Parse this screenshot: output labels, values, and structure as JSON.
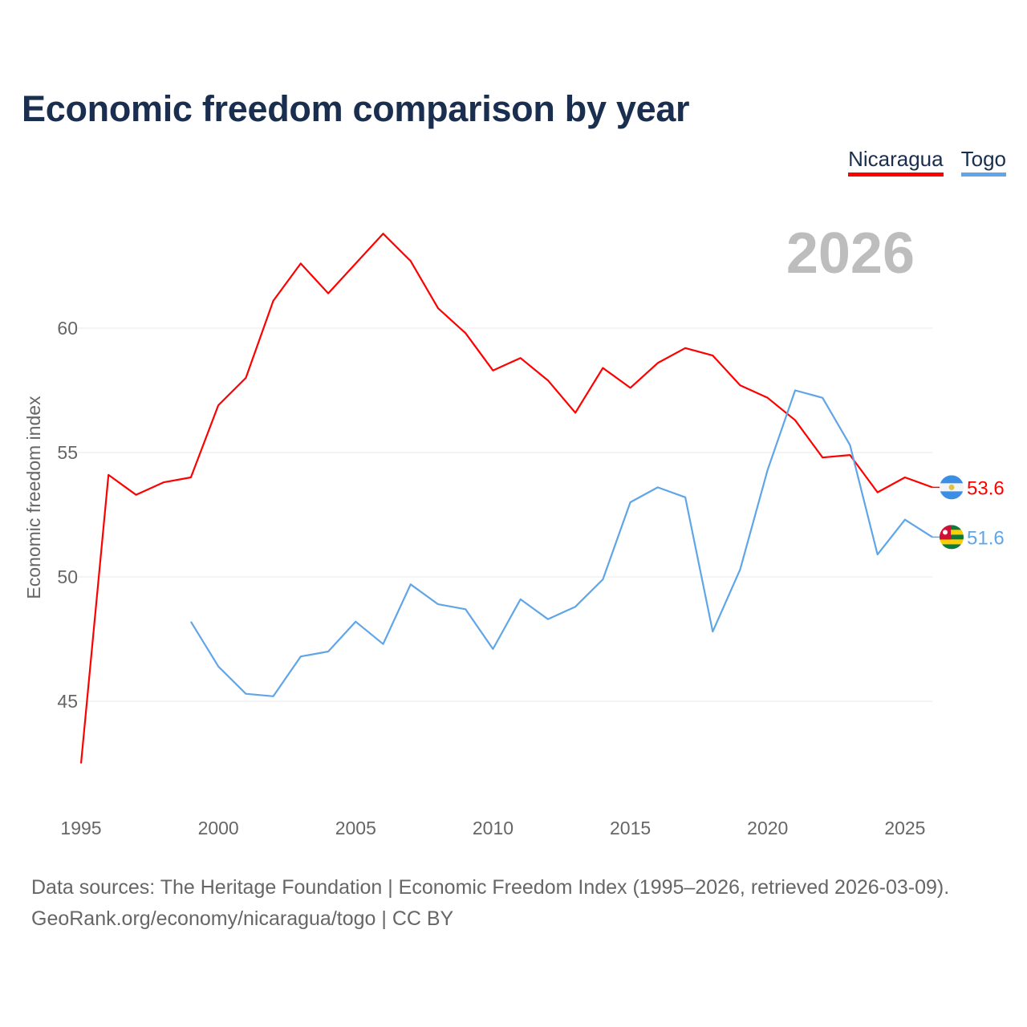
{
  "title": "Economic freedom comparison by year",
  "footer": {
    "line1": "Data sources: The Heritage Foundation | Economic Freedom Index (1995–2026, retrieved 2026-03-09).",
    "line2": "GeoRank.org/economy/nicaragua/togo | CC BY"
  },
  "chart_data": {
    "type": "line",
    "title": "Economic freedom comparison by year",
    "xlabel": "",
    "ylabel": "Economic freedom index",
    "year_watermark": "2026",
    "xlim": [
      1995,
      2026
    ],
    "ylim": [
      41.5,
      64.5
    ],
    "x_ticks": [
      "1995",
      "2000",
      "2005",
      "2010",
      "2015",
      "2020",
      "2025"
    ],
    "y_ticks": [
      "45",
      "50",
      "55",
      "60"
    ],
    "grid": true,
    "legend_position": "top-right",
    "series": [
      {
        "name": "Nicaragua",
        "color": "#ff0000",
        "flag_icon": "nicaragua-flag-icon",
        "end_label": "53.6",
        "x": [
          1995,
          1996,
          1997,
          1998,
          1999,
          2000,
          2001,
          2002,
          2003,
          2004,
          2005,
          2006,
          2007,
          2008,
          2009,
          2010,
          2011,
          2012,
          2013,
          2014,
          2015,
          2016,
          2017,
          2018,
          2019,
          2020,
          2021,
          2022,
          2023,
          2024,
          2025,
          2026
        ],
        "values": [
          42.5,
          54.1,
          53.3,
          53.8,
          54.0,
          56.9,
          58.0,
          61.1,
          62.6,
          61.4,
          62.6,
          63.8,
          62.7,
          60.8,
          59.8,
          58.3,
          58.8,
          57.9,
          56.6,
          58.4,
          57.6,
          58.6,
          59.2,
          58.9,
          57.7,
          57.2,
          56.3,
          54.8,
          54.9,
          53.4,
          54.0,
          53.6
        ]
      },
      {
        "name": "Togo",
        "color": "#60a5e8",
        "flag_icon": "togo-flag-icon",
        "end_label": "51.6",
        "x": [
          1999,
          2000,
          2001,
          2002,
          2003,
          2004,
          2005,
          2006,
          2007,
          2008,
          2009,
          2010,
          2011,
          2012,
          2013,
          2014,
          2015,
          2016,
          2017,
          2018,
          2019,
          2020,
          2021,
          2022,
          2023,
          2024,
          2025,
          2026
        ],
        "values": [
          48.2,
          46.4,
          45.3,
          45.2,
          46.8,
          47.0,
          48.2,
          47.3,
          49.7,
          48.9,
          48.7,
          47.1,
          49.1,
          48.3,
          48.8,
          49.9,
          53.0,
          53.6,
          53.2,
          47.8,
          50.3,
          54.3,
          57.5,
          57.2,
          55.3,
          50.9,
          52.3,
          51.6
        ]
      }
    ]
  }
}
